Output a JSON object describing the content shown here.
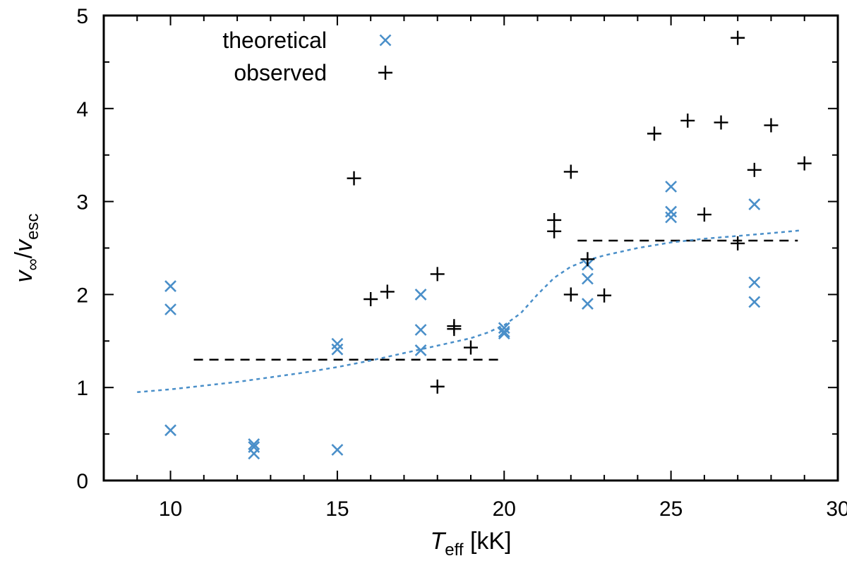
{
  "chart_data": {
    "type": "scatter",
    "xlabel": {
      "var": "T",
      "sub": "eff",
      "unit": " [kK]"
    },
    "ylabel": {
      "num": "v",
      "num_sub": "∞",
      "sep": "/",
      "den": "v",
      "den_sub": "esc"
    },
    "xlim": [
      8,
      30
    ],
    "ylim": [
      0,
      5
    ],
    "xticks": [
      10,
      15,
      20,
      25,
      30
    ],
    "yticks": [
      0,
      1,
      2,
      3,
      4,
      5
    ],
    "grid": false,
    "legend_position": "top-left",
    "series": [
      {
        "name": "theoretical",
        "marker": "x",
        "color": "#4a8fc9",
        "points": [
          [
            10,
            2.09
          ],
          [
            10,
            1.84
          ],
          [
            10,
            0.54
          ],
          [
            12.5,
            0.39
          ],
          [
            12.5,
            0.36
          ],
          [
            12.5,
            0.29
          ],
          [
            15,
            1.47
          ],
          [
            15,
            1.41
          ],
          [
            15,
            0.33
          ],
          [
            17.5,
            2.0
          ],
          [
            17.5,
            1.62
          ],
          [
            17.5,
            1.4
          ],
          [
            20,
            1.64
          ],
          [
            20,
            1.6
          ],
          [
            20,
            1.58
          ],
          [
            22.5,
            2.32
          ],
          [
            22.5,
            2.17
          ],
          [
            22.5,
            1.9
          ],
          [
            25,
            3.16
          ],
          [
            25,
            2.89
          ],
          [
            25,
            2.83
          ],
          [
            27.5,
            2.97
          ],
          [
            27.5,
            2.13
          ],
          [
            27.5,
            1.92
          ]
        ]
      },
      {
        "name": "observed",
        "marker": "+",
        "color": "#000000",
        "points": [
          [
            15.5,
            3.25
          ],
          [
            16,
            1.95
          ],
          [
            16.5,
            2.03
          ],
          [
            18,
            2.22
          ],
          [
            18,
            1.01
          ],
          [
            18.5,
            1.66
          ],
          [
            18.5,
            1.63
          ],
          [
            19,
            1.43
          ],
          [
            21.5,
            2.8
          ],
          [
            21.5,
            2.68
          ],
          [
            22,
            3.32
          ],
          [
            22,
            2.0
          ],
          [
            22.5,
            2.38
          ],
          [
            23,
            1.99
          ],
          [
            24.5,
            3.73
          ],
          [
            25.5,
            3.87
          ],
          [
            26,
            2.86
          ],
          [
            26.5,
            3.85
          ],
          [
            27,
            4.76
          ],
          [
            27,
            2.55
          ],
          [
            27.5,
            3.34
          ],
          [
            28,
            3.82
          ],
          [
            29,
            3.41
          ]
        ]
      }
    ],
    "lines": [
      {
        "style": "dashed",
        "color": "#000000",
        "points": [
          [
            10.7,
            1.3
          ],
          [
            19.9,
            1.3
          ]
        ]
      },
      {
        "style": "dashed",
        "color": "#000000",
        "points": [
          [
            22.2,
            2.58
          ],
          [
            28.8,
            2.58
          ]
        ]
      },
      {
        "style": "dotted",
        "color": "#4a8fc9",
        "points": [
          [
            9,
            0.95
          ],
          [
            10,
            0.98
          ],
          [
            11,
            1.02
          ],
          [
            12,
            1.06
          ],
          [
            13,
            1.11
          ],
          [
            14,
            1.16
          ],
          [
            15,
            1.22
          ],
          [
            16,
            1.29
          ],
          [
            17,
            1.37
          ],
          [
            18,
            1.45
          ],
          [
            19,
            1.53
          ],
          [
            19.5,
            1.59
          ],
          [
            20,
            1.67
          ],
          [
            20.5,
            1.8
          ],
          [
            21,
            2.0
          ],
          [
            21.5,
            2.18
          ],
          [
            22,
            2.3
          ],
          [
            22.5,
            2.37
          ],
          [
            23,
            2.42
          ],
          [
            24,
            2.5
          ],
          [
            25,
            2.56
          ],
          [
            26,
            2.6
          ],
          [
            27,
            2.63
          ],
          [
            28,
            2.66
          ],
          [
            28.9,
            2.69
          ]
        ]
      }
    ]
  }
}
